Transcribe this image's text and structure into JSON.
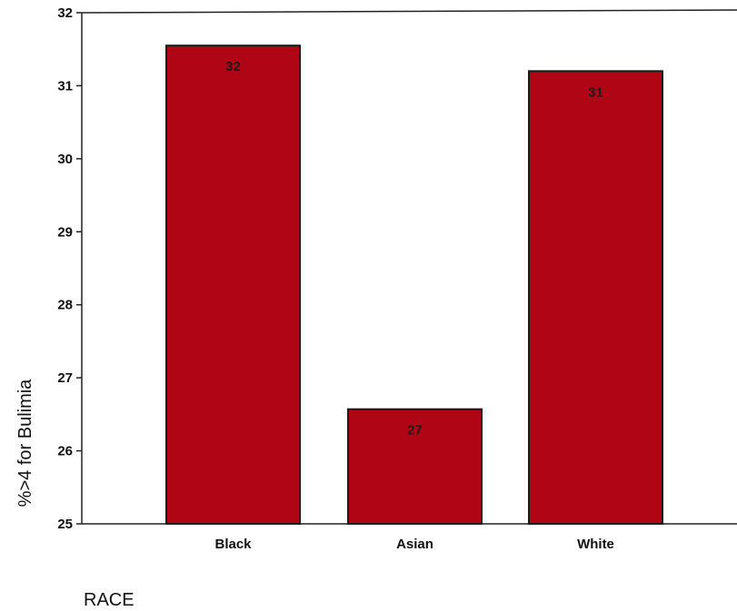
{
  "chart_data": {
    "type": "bar",
    "categories": [
      "Black",
      "Asian",
      "White"
    ],
    "values": [
      31.55,
      26.57,
      31.2
    ],
    "data_labels": [
      "32",
      "27",
      "31"
    ],
    "title": "",
    "xlabel": "RACE",
    "ylabel": "%>4 for Bulimia",
    "ylim": [
      25,
      32
    ],
    "yticks": [
      25,
      26,
      27,
      28,
      29,
      30,
      31,
      32
    ],
    "grid": false,
    "legend": "none",
    "bar_color": "#b00514",
    "bar_edge_color": "#1a1a1a"
  }
}
